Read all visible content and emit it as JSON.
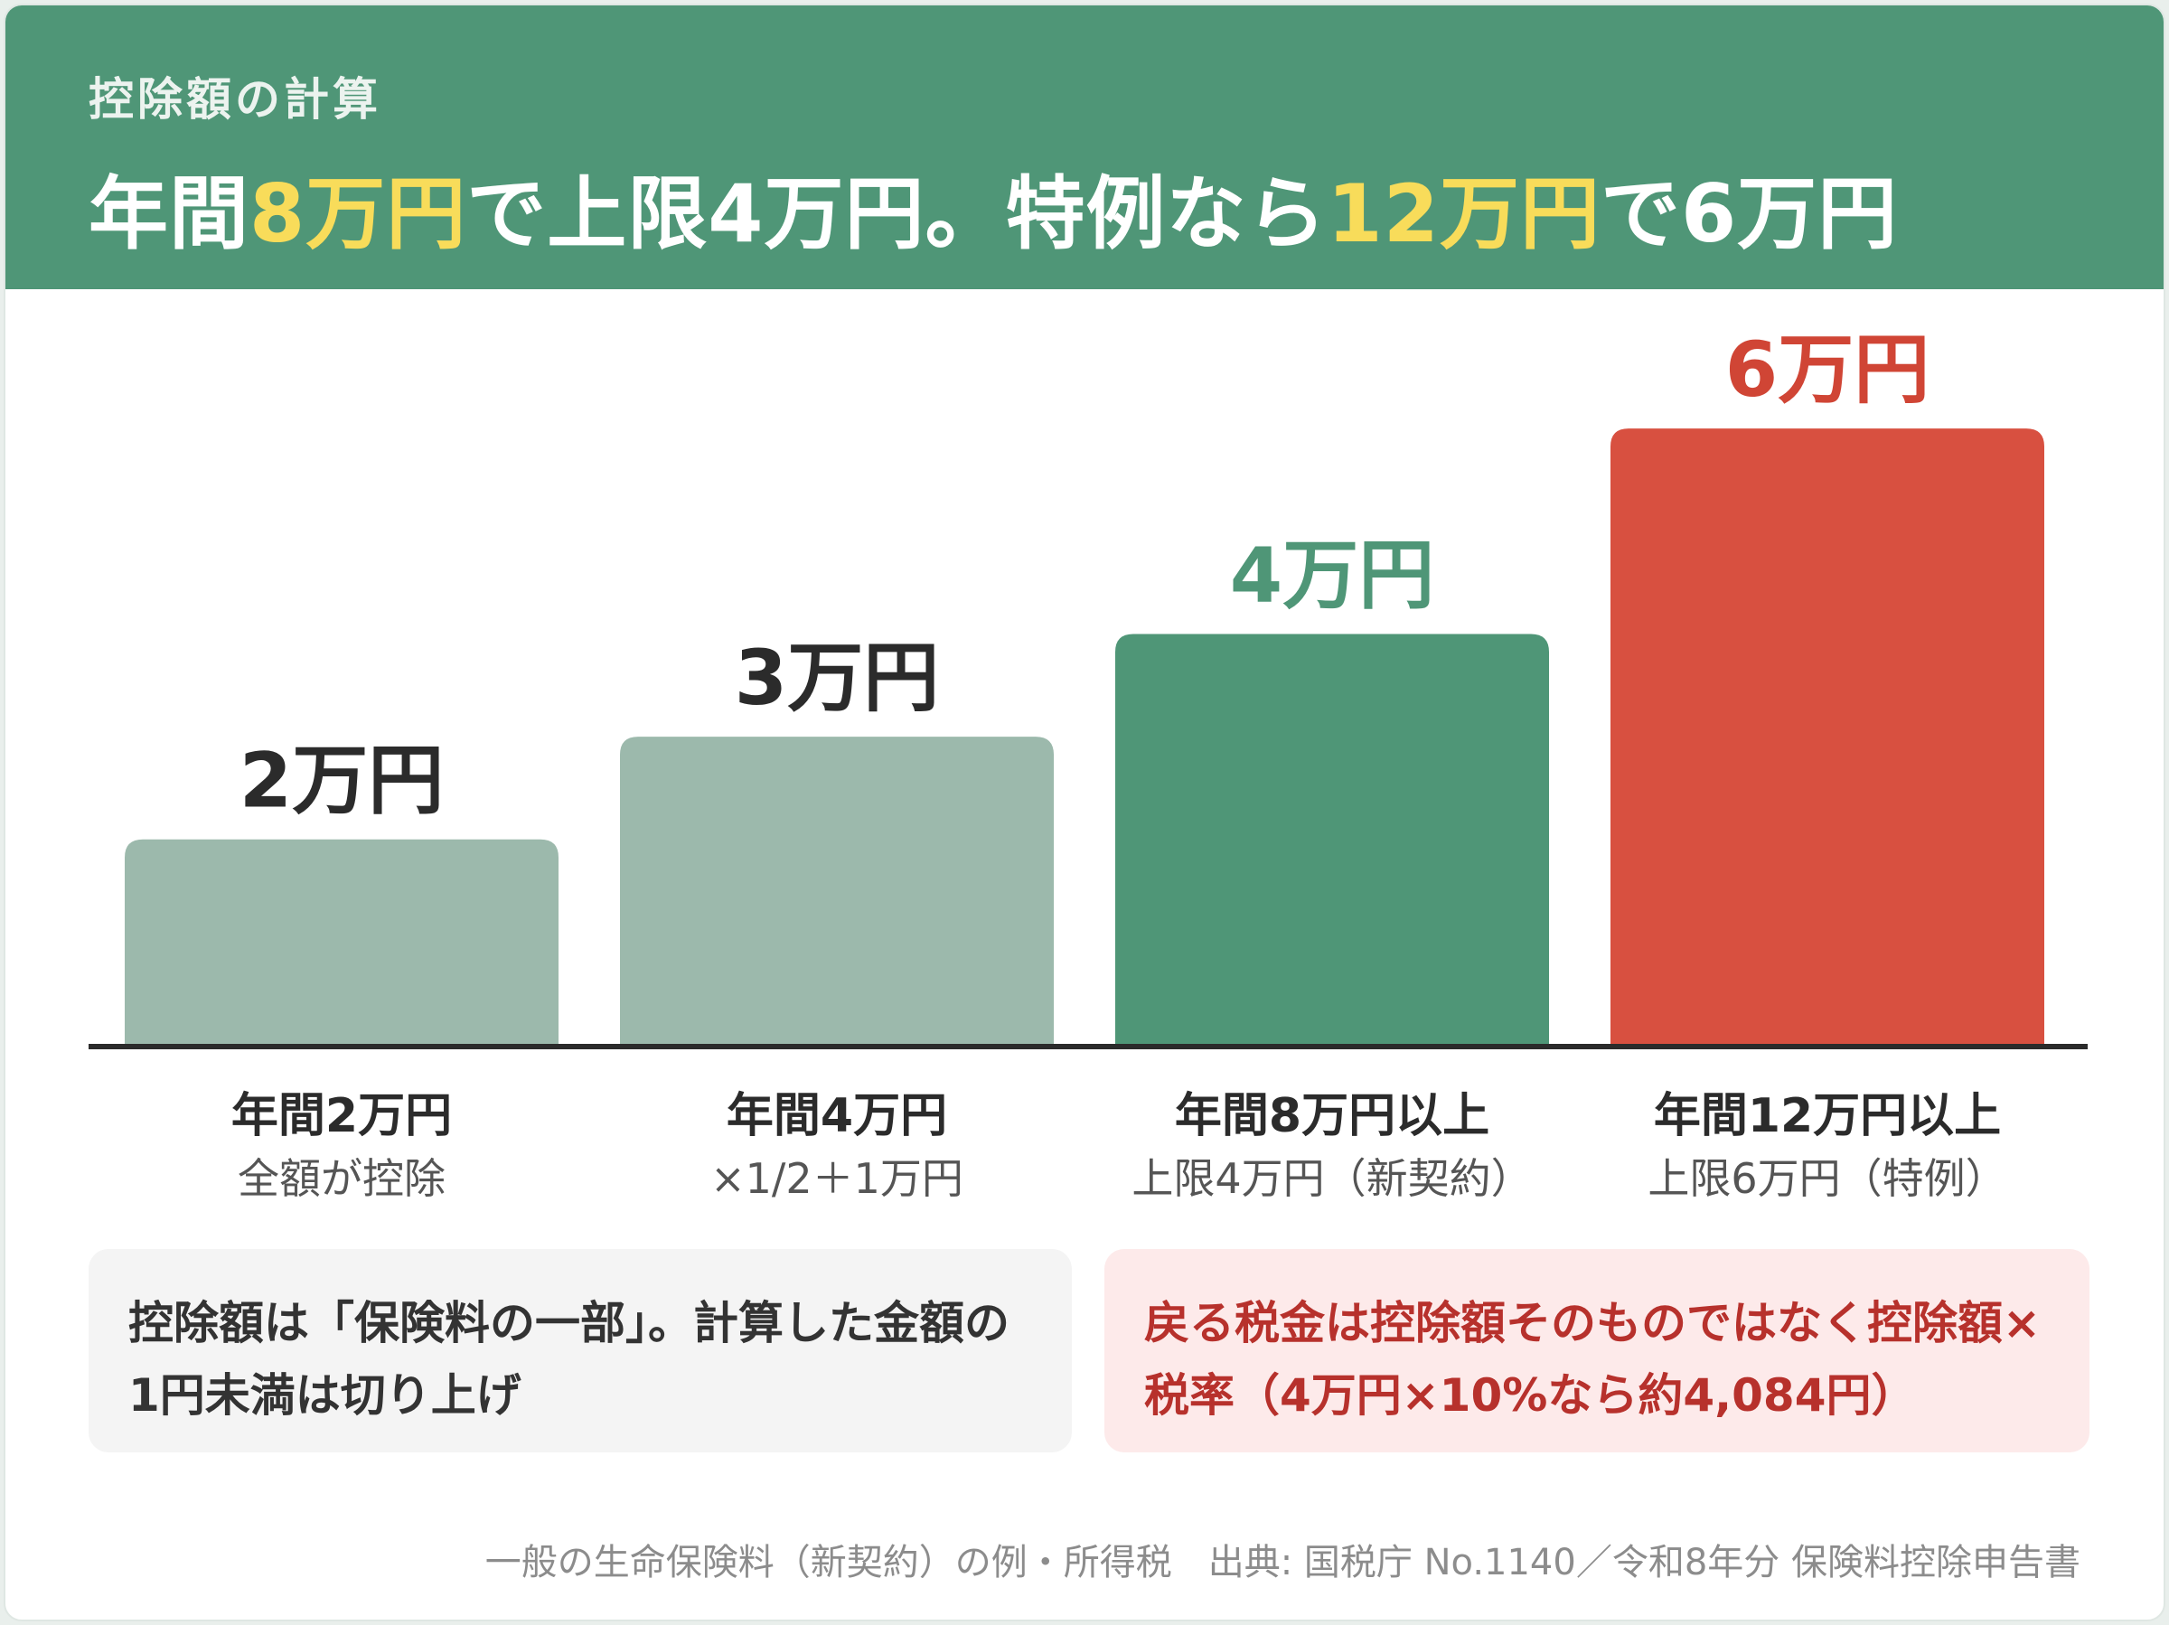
{
  "header": {
    "kicker": "控除額の計算",
    "headline": {
      "part1": "年間",
      "hl1": "8万円",
      "part2": "で上限4万円。特例なら",
      "hl2": "12万円",
      "part3": "で6万円"
    }
  },
  "chart_data": {
    "type": "bar",
    "categories": [
      "年間2万円",
      "年間4万円",
      "年間8万円以上",
      "年間12万円以上"
    ],
    "sublabels": [
      "全額が控除",
      "×1/2＋1万円",
      "上限4万円（新契約）",
      "上限6万円（特例）"
    ],
    "values": [
      2,
      3,
      4,
      6
    ],
    "value_labels": [
      "2万円",
      "3万円",
      "4万円",
      "6万円"
    ],
    "bar_colors": [
      "#9cb9ac",
      "#9cb9ac",
      "#4f9677",
      "#d85040"
    ],
    "value_label_colors": [
      "#2b2b2b",
      "#2b2b2b",
      "#4f9677",
      "#d04535"
    ],
    "ylim": [
      0,
      6.6
    ],
    "grid": false,
    "legend": "none"
  },
  "notes": {
    "left": "控除額は「保険料の一部」。計算した金額の1円未満は切り上げ",
    "right": "戻る税金は控除額そのものではなく控除額×税率（4万円×10%なら約4,084円）"
  },
  "footer": "一般の生命保険料（新契約）の例・所得税　出典: 国税庁 No.1140／令和8年分 保険料控除申告書"
}
